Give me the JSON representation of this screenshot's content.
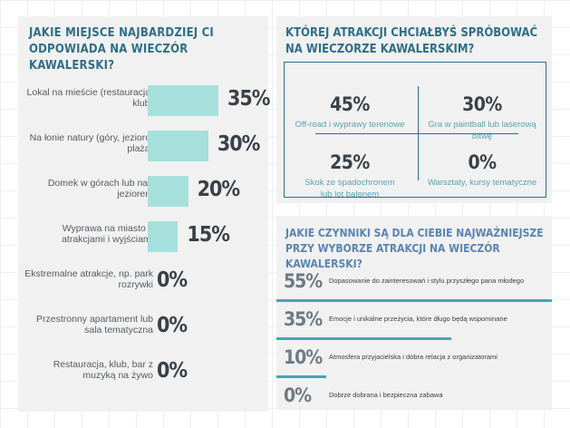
{
  "colors": {
    "bar": "#a6e0dd",
    "title": "#2f6f8a",
    "accent_line": "#4aa3b3",
    "panel": "#f1f1f1"
  },
  "chart_data": [
    {
      "type": "bar",
      "title": "JAKIE MIEJSCE NAJBARDZIEJ CI ODPOWIADA NA WIECZÓR KAWALERSKI?",
      "categories": [
        "Lokal na mieście (restauracja, klub)",
        "Na łonie natury (góry, jezioro, plaża)",
        "Domek w górach lub nad jeziorem",
        "Wyprawa na miasto z atrakcjami i wyjściami",
        "Ekstremalne atrakcje, np. park rozrywki",
        "Przestronny apartament lub sala tematyczna",
        "Restauracja, klub, bar z muzyką na żywo"
      ],
      "values": [
        35,
        30,
        20,
        15,
        0,
        0,
        0
      ],
      "labels": [
        "35%",
        "30%",
        "20%",
        "15%",
        "0%",
        "0%",
        "0%"
      ],
      "xlim": [
        0,
        35
      ]
    },
    {
      "type": "table",
      "title": "KTÓREJ ATRAKCJI CHCIAŁBYŚ SPRÓBOWAĆ NA WIECZORZE KAWALERSKIM?",
      "categories": [
        "Off-road i wyprawy terenowe",
        "Gra w paintball lub laserową bitwę",
        "Skok ze spadochronem lub lot balonem",
        "Warsztaty, kursy tematyczne"
      ],
      "values": [
        45,
        30,
        25,
        0
      ],
      "labels": [
        "45%",
        "30%",
        "25%",
        "0%"
      ]
    },
    {
      "type": "bar",
      "title": "JAKIE CZYNNIKI SĄ DLA CIEBIE NAJWAŻNIEJSZE PRZY WYBORZE ATRAKCJI NA WIECZÓR KAWALERSKI?",
      "categories": [
        "Dopasowanie do zainteresowań i stylu przyszłego pana młodego",
        "Emocje i unikalne przeżycia, które długo będą wspominane",
        "Atmosfera przyjacielska i dobra relacja z organizatorami",
        "Dobrze dobrana i bezpieczna zabawa"
      ],
      "values": [
        55,
        35,
        10,
        0
      ],
      "labels": [
        "55%",
        "35%",
        "10%",
        "0%"
      ],
      "xlim": [
        0,
        55
      ]
    }
  ]
}
